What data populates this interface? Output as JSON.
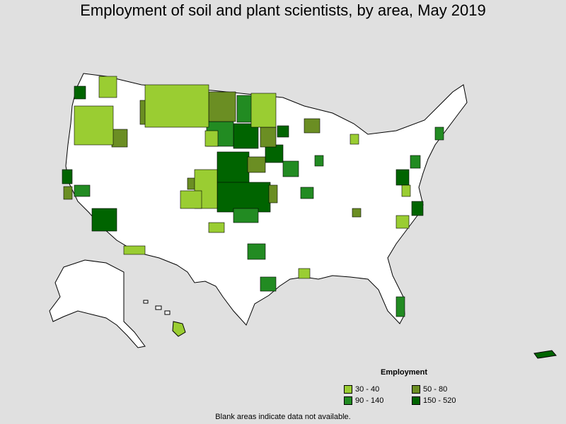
{
  "title": "Employment of soil and plant scientists, by area, May 2019",
  "legend": {
    "title": "Employment",
    "items": [
      {
        "label": "30 - 40",
        "color": "#9acd32"
      },
      {
        "label": "50 - 80",
        "color": "#6b8e23"
      },
      {
        "label": "90 - 140",
        "color": "#228b22"
      },
      {
        "label": "150 - 520",
        "color": "#006400"
      }
    ]
  },
  "footnote": "Blank areas indicate data not available.",
  "colors": {
    "background": "#e0e0e0",
    "land": "#ffffff",
    "border": "#000000"
  }
}
